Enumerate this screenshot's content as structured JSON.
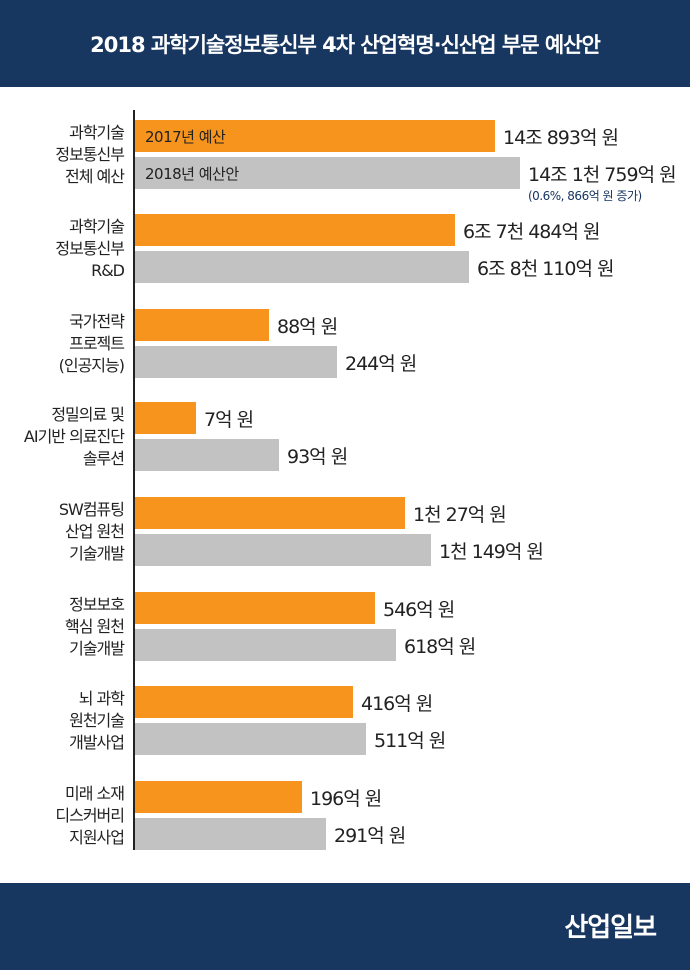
{
  "title": "2018 과학기술정보통신부 4차 산업혁명·신산업 부문 예산안",
  "logo": "산업일보",
  "colors": {
    "header": "#173660",
    "budget_2017": "#f7941e",
    "budget_2018": "#c2c2c2"
  },
  "chart_data": {
    "type": "bar",
    "orientation": "horizontal",
    "title": "2018 과학기술정보통신부 4차 산업혁명·신산업 부문 예산안",
    "unit": "억 원",
    "series": [
      {
        "name": "2017년 예산"
      },
      {
        "name": "2018년 예산안"
      }
    ],
    "categories": [
      {
        "label": [
          "과학기술",
          "정보통신부",
          "전체 예산"
        ],
        "v2017": 140893,
        "v2018": 141759,
        "t2017": "14조 893억 원",
        "t2018": "14조 1천 759억 원",
        "note": "(0.6%, 866억 원 증가)"
      },
      {
        "label": [
          "과학기술",
          "정보통신부",
          "R&D"
        ],
        "v2017": 67484,
        "v2018": 68110,
        "t2017": "6조 7천 484억 원",
        "t2018": "6조 8천 110억 원"
      },
      {
        "label": [
          "국가전략",
          "프로젝트",
          "(인공지능)"
        ],
        "v2017": 88,
        "v2018": 244,
        "t2017": "88억 원",
        "t2018": "244억 원"
      },
      {
        "label": [
          "정밀의료 및",
          "AI기반 의료진단",
          "솔루션"
        ],
        "v2017": 7,
        "v2018": 93,
        "t2017": "7억 원",
        "t2018": "93억 원"
      },
      {
        "label": [
          "SW컴퓨팅",
          "산업 원천",
          "기술개발"
        ],
        "v2017": 1027,
        "v2018": 1149,
        "t2017": "1천 27억 원",
        "t2018": "1천 149억 원"
      },
      {
        "label": [
          "정보보호",
          "핵심 원천",
          "기술개발"
        ],
        "v2017": 546,
        "v2018": 618,
        "t2017": "546억 원",
        "t2018": "618억 원"
      },
      {
        "label": [
          "뇌 과학",
          "원천기술",
          "개발사업"
        ],
        "v2017": 416,
        "v2018": 511,
        "t2017": "416억 원",
        "t2018": "511억 원"
      },
      {
        "label": [
          "미래 소재",
          "디스커버리",
          "지원사업"
        ],
        "v2017": 196,
        "v2018": 291,
        "t2017": "196억 원",
        "t2018": "291억 원"
      }
    ]
  }
}
